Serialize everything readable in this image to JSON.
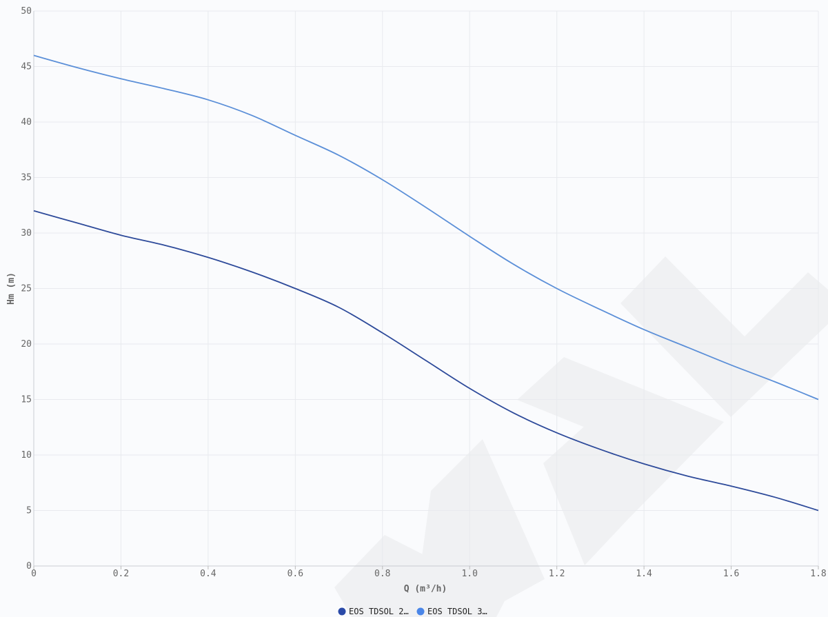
{
  "chart_data": {
    "type": "line",
    "xlabel": "Q (m³/h)",
    "ylabel": "Hm (m)",
    "xlim": [
      0,
      1.8
    ],
    "ylim": [
      0,
      50
    ],
    "x_ticks": [
      "0",
      "0.2",
      "0.4",
      "0.6",
      "0.8",
      "1.0",
      "1.2",
      "1.4",
      "1.6",
      "1.8"
    ],
    "y_ticks": [
      "0",
      "5",
      "10",
      "15",
      "20",
      "25",
      "30",
      "35",
      "40",
      "45",
      "50"
    ],
    "grid": true,
    "legend_position": "bottom-center",
    "series": [
      {
        "name": "EOS TDSOL 2…",
        "color": "#2a4aa8",
        "line_color": "#2d4a9a",
        "x": [
          0,
          0.1,
          0.2,
          0.3,
          0.4,
          0.5,
          0.6,
          0.7,
          0.8,
          0.9,
          1.0,
          1.1,
          1.2,
          1.3,
          1.4,
          1.5,
          1.6,
          1.7,
          1.8
        ],
        "y": [
          32,
          30.9,
          29.8,
          28.9,
          27.8,
          26.5,
          25.0,
          23.3,
          21.0,
          18.5,
          16.0,
          13.8,
          12.0,
          10.5,
          9.2,
          8.1,
          7.2,
          6.2,
          5.0
        ]
      },
      {
        "name": "EOS TDSOL 3…",
        "color": "#4a86e8",
        "line_color": "#5b8fd8",
        "x": [
          0,
          0.1,
          0.2,
          0.3,
          0.4,
          0.5,
          0.6,
          0.7,
          0.8,
          0.9,
          1.0,
          1.1,
          1.2,
          1.3,
          1.4,
          1.5,
          1.6,
          1.7,
          1.8
        ],
        "y": [
          46,
          44.9,
          43.9,
          43.0,
          42.0,
          40.6,
          38.8,
          37.0,
          34.8,
          32.3,
          29.7,
          27.2,
          25.0,
          23.1,
          21.3,
          19.7,
          18.1,
          16.6,
          15.0
        ]
      }
    ]
  }
}
